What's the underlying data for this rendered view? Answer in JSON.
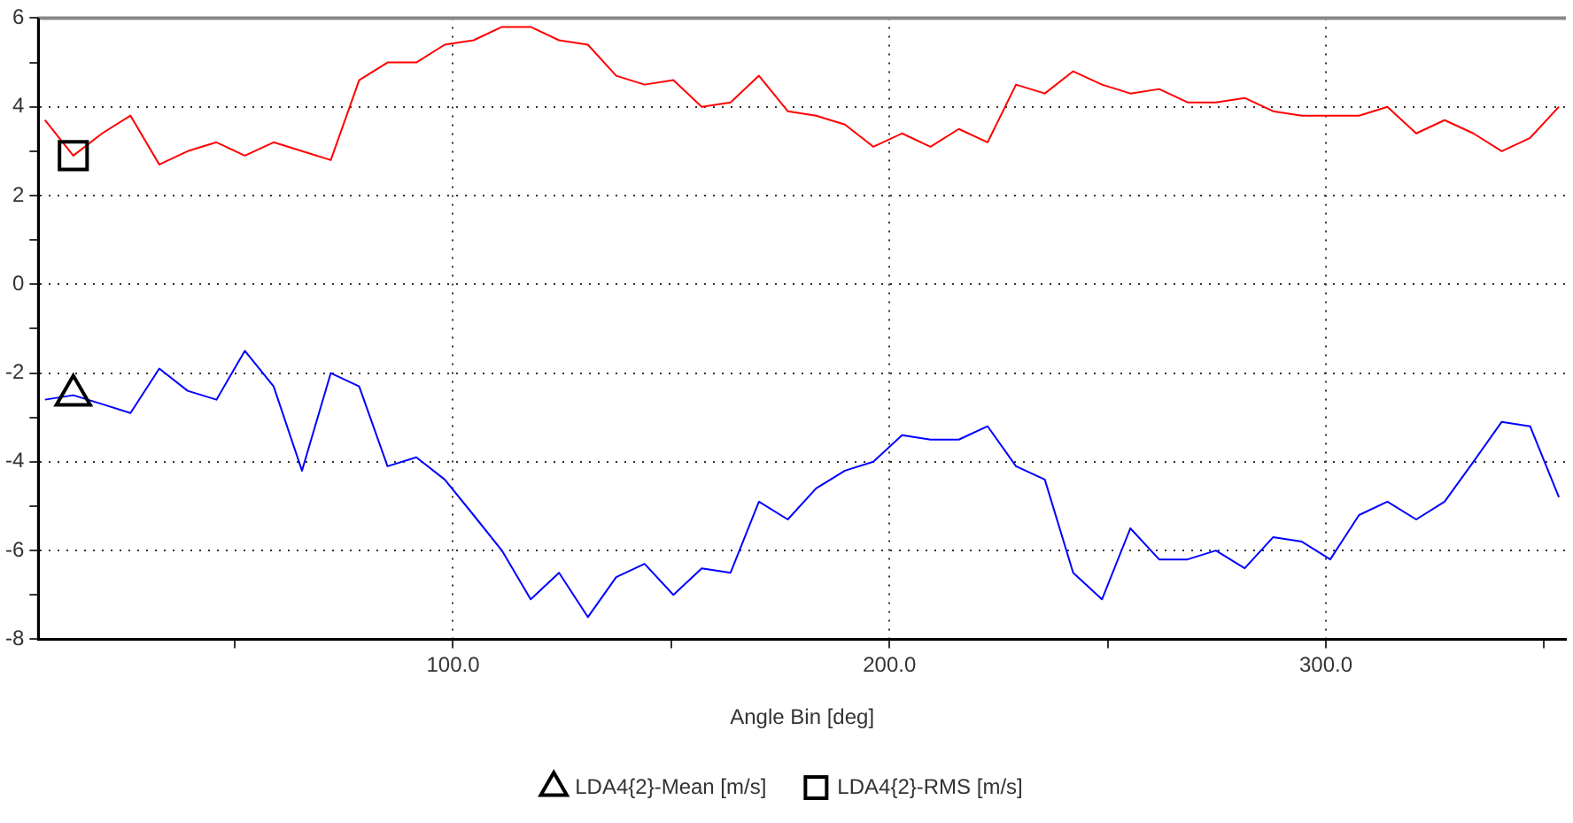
{
  "chart_data": {
    "type": "line",
    "xlabel": "Angle Bin [deg]",
    "x": [
      6.5,
      13.0,
      19.6,
      26.1,
      32.7,
      39.2,
      45.8,
      52.3,
      58.9,
      65.4,
      72.0,
      78.5,
      85.0,
      91.6,
      98.1,
      104.7,
      111.2,
      117.8,
      124.3,
      130.9,
      137.4,
      143.9,
      150.5,
      157.0,
      163.6,
      170.1,
      176.7,
      183.2,
      189.8,
      196.3,
      202.9,
      209.4,
      215.9,
      222.5,
      229.0,
      235.6,
      242.1,
      248.7,
      255.2,
      261.8,
      268.3,
      274.8,
      281.4,
      287.9,
      294.5,
      301.0,
      307.6,
      314.1,
      320.7,
      327.2,
      333.8,
      340.3,
      346.8,
      353.4
    ],
    "series": [
      {
        "name": "LDA4{2}-Mean [m/s]",
        "color": "#0000ff",
        "values": [
          -2.6,
          -2.5,
          -2.7,
          -2.9,
          -1.9,
          -2.4,
          -2.6,
          -1.5,
          -2.3,
          -4.2,
          -2.0,
          -2.3,
          -4.1,
          -3.9,
          -4.4,
          -5.2,
          -6.0,
          -7.1,
          -6.5,
          -7.5,
          -6.6,
          -6.3,
          -7.0,
          -6.4,
          -6.5,
          -4.9,
          -5.3,
          -4.6,
          -4.2,
          -4.0,
          -3.4,
          -3.5,
          -3.5,
          -3.2,
          -4.1,
          -4.4,
          -6.5,
          -7.1,
          -5.5,
          -6.2,
          -6.2,
          -6.0,
          -6.4,
          -5.7,
          -5.8,
          -6.2,
          -5.2,
          -4.9,
          -5.3,
          -4.9,
          -4.0,
          -3.1,
          -3.2,
          -4.8
        ]
      },
      {
        "name": "LDA4{2}-RMS [m/s]",
        "color": "#ff0000",
        "values": [
          3.7,
          2.9,
          3.4,
          3.8,
          2.7,
          3.0,
          3.2,
          2.9,
          3.2,
          3.0,
          2.8,
          4.6,
          5.0,
          5.0,
          5.4,
          5.5,
          5.8,
          5.8,
          5.5,
          5.4,
          4.7,
          4.5,
          4.6,
          4.0,
          4.1,
          4.7,
          3.9,
          3.8,
          3.6,
          3.1,
          3.4,
          3.1,
          3.5,
          3.2,
          4.5,
          4.3,
          4.8,
          4.5,
          4.3,
          4.4,
          4.1,
          4.1,
          4.2,
          3.9,
          3.8,
          3.8,
          3.8,
          4.0,
          3.4,
          3.7,
          3.4,
          3.0,
          3.3,
          4.0
        ]
      }
    ],
    "xlim": [
      5,
      355
    ],
    "xticks": [
      {
        "value": 50,
        "label": null
      },
      {
        "value": 100,
        "label": "100.0"
      },
      {
        "value": 150,
        "label": null
      },
      {
        "value": 200,
        "label": "200.0"
      },
      {
        "value": 250,
        "label": null
      },
      {
        "value": 300,
        "label": "300.0"
      },
      {
        "value": 350,
        "label": null
      }
    ],
    "ylim": [
      -8,
      6
    ],
    "yticks": [
      -8,
      {
        "value": -7,
        "label": null
      },
      -6,
      {
        "value": -5,
        "label": null
      },
      -4,
      {
        "value": -3,
        "label": null
      },
      -2,
      {
        "value": -1,
        "label": null
      },
      0,
      {
        "value": 1,
        "label": null
      },
      2,
      {
        "value": 3,
        "label": null
      },
      4,
      {
        "value": 5,
        "label": null
      },
      6
    ],
    "grid": true,
    "legend": "bottom",
    "line_style": "solid"
  }
}
